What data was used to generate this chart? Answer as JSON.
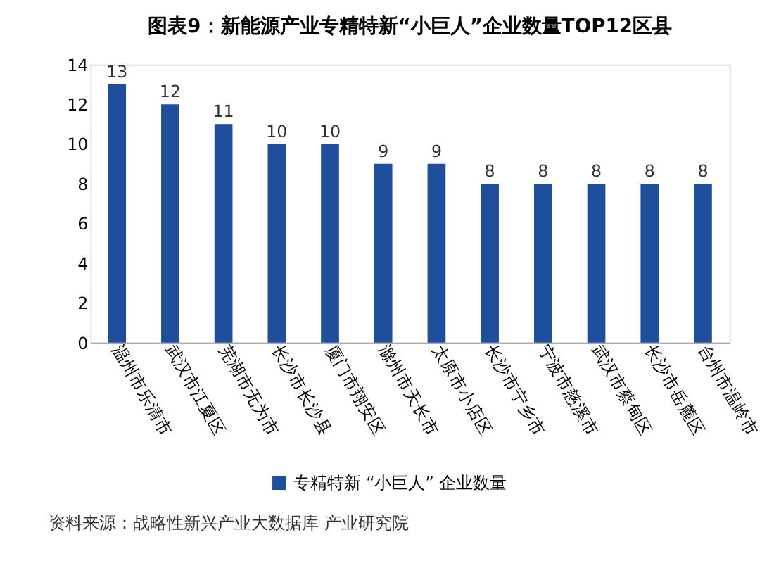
{
  "chart_data": {
    "type": "bar",
    "title": "图表9：新能源产业专精特新“小巨人”企业数量TOP12区县",
    "categories": [
      "温州市乐清市",
      "武汉市江夏区",
      "芜湖市无为市",
      "长沙市长沙县",
      "厦门市翔安区",
      "滁州市天长市",
      "太原市小店区",
      "长沙市宁乡市",
      "宁波市慈溪市",
      "武汉市蔡甸区",
      "长沙市岳麓区",
      "台州市温岭市"
    ],
    "series": [
      {
        "name": "专精特新 “小巨人” 企业数量",
        "color": "#1f4e9c",
        "values": [
          13,
          12,
          11,
          10,
          10,
          9,
          9,
          8,
          8,
          8,
          8,
          8
        ]
      }
    ],
    "ylim": [
      0,
      14
    ],
    "yticks": [
      0,
      2,
      4,
      6,
      8,
      10,
      12,
      14
    ],
    "grid": false,
    "data_labels": true,
    "legend": "bottom",
    "annotations": [
      "资料来源：战略性新兴产业大数据库 产业研究院"
    ]
  }
}
